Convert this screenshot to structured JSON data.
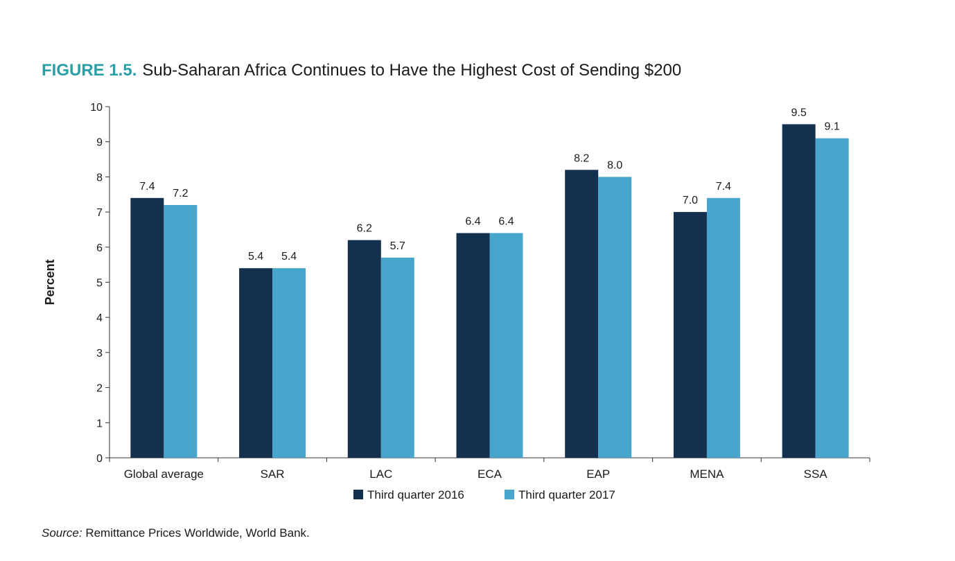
{
  "figure": {
    "label": "FIGURE 1.5.",
    "title": "Sub-Saharan Africa Continues to Have the Highest Cost of Sending $200"
  },
  "source": {
    "label": "Source:",
    "text": " Remittance Prices Worldwide, World Bank."
  },
  "chart_data": {
    "type": "bar",
    "ylabel": "Percent",
    "xlabel": "",
    "ylim": [
      0,
      10
    ],
    "yticks": [
      0,
      1,
      2,
      3,
      4,
      5,
      6,
      7,
      8,
      9,
      10
    ],
    "grid": false,
    "legend_position": "bottom",
    "categories": [
      "Global average",
      "SAR",
      "LAC",
      "ECA",
      "EAP",
      "MENA",
      "SSA"
    ],
    "series": [
      {
        "name": "Third quarter 2016",
        "color": "#13304f",
        "values": [
          7.4,
          5.4,
          6.2,
          6.4,
          8.2,
          7.0,
          9.5
        ],
        "labels": [
          "7.4",
          "5.4",
          "6.2",
          "6.4",
          "8.2",
          "7.0",
          "9.5"
        ]
      },
      {
        "name": "Third quarter 2017",
        "color": "#48a6cc",
        "values": [
          7.2,
          5.4,
          5.7,
          6.4,
          8.0,
          7.4,
          9.1
        ],
        "labels": [
          "7.2",
          "5.4",
          "5.7",
          "6.4",
          "8.0",
          "7.4",
          "9.1"
        ]
      }
    ]
  }
}
